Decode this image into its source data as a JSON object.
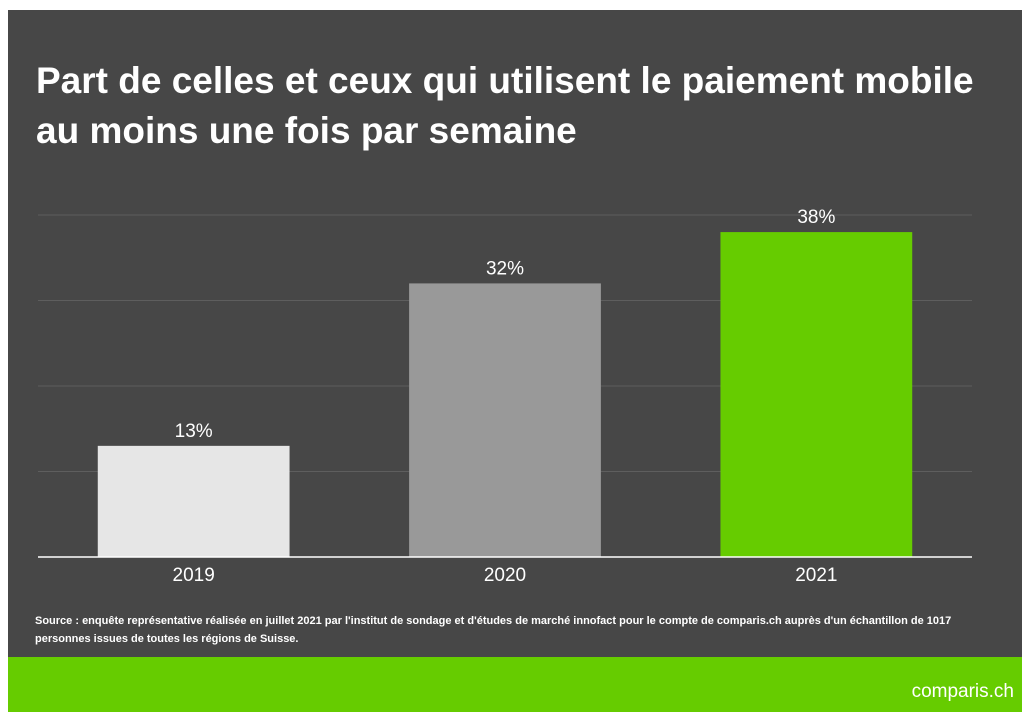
{
  "chart_data": {
    "type": "bar",
    "title": "Part de celles et ceux qui utilisent le paiement mobile au moins une fois par semaine",
    "categories": [
      "2019",
      "2020",
      "2021"
    ],
    "values": [
      13,
      32,
      38
    ],
    "value_labels": [
      "13%",
      "32%",
      "38%"
    ],
    "colors": [
      "#e6e6e6",
      "#999999",
      "#66cc00"
    ],
    "ylim": [
      0,
      40
    ],
    "yticks": [
      0,
      10,
      20,
      30,
      40
    ],
    "grid": true,
    "source": "Source : enquête représentative réalisée en juillet 2021 par l'institut de sondage et d'études de marché innofact pour le compte de comparis.ch auprès d'un échantillon de 1017 personnes issues de toutes les régions de Suisse."
  },
  "footer": {
    "brand": "comparis.ch"
  }
}
